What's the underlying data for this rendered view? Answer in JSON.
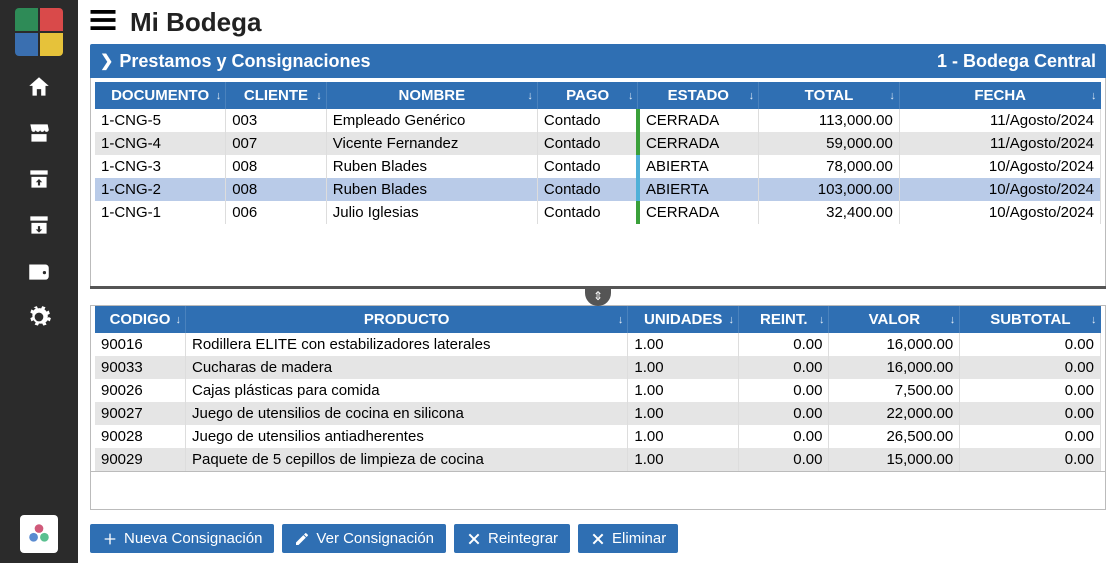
{
  "app": {
    "title": "Mi Bodega"
  },
  "section": {
    "title": "Prestamos y Consignaciones",
    "location": "1 - Bodega Central"
  },
  "colors": {
    "primary": "#2f6fb3",
    "row_alt": "#e5e5e5",
    "row_selected": "#b9cbe8",
    "estado_cerrada": "#3aa03a",
    "estado_abierta": "#4fb0d8",
    "sidebar_bg": "#2b2b2b"
  },
  "logo_colors": [
    "#2e8b57",
    "#d94a4a",
    "#3a6fb0",
    "#e6c23a"
  ],
  "master": {
    "columns": [
      {
        "key": "documento",
        "label": "DOCUMENTO",
        "width": "13%",
        "align": "left"
      },
      {
        "key": "cliente",
        "label": "CLIENTE",
        "width": "10%",
        "align": "left"
      },
      {
        "key": "nombre",
        "label": "NOMBRE",
        "width": "21%",
        "align": "left"
      },
      {
        "key": "pago",
        "label": "PAGO",
        "width": "10%",
        "align": "left"
      },
      {
        "key": "estado",
        "label": "ESTADO",
        "width": "12%",
        "align": "left"
      },
      {
        "key": "total",
        "label": "TOTAL",
        "width": "14%",
        "align": "right"
      },
      {
        "key": "fecha",
        "label": "FECHA",
        "width": "20%",
        "align": "right"
      }
    ],
    "rows": [
      {
        "documento": "1-CNG-5",
        "cliente": "003",
        "nombre": "Empleado Genérico",
        "pago": "Contado",
        "estado": "CERRADA",
        "total": "113,000.00",
        "fecha": "11/Agosto/2024"
      },
      {
        "documento": "1-CNG-4",
        "cliente": "007",
        "nombre": "Vicente Fernandez",
        "pago": "Contado",
        "estado": "CERRADA",
        "total": "59,000.00",
        "fecha": "11/Agosto/2024"
      },
      {
        "documento": "1-CNG-3",
        "cliente": "008",
        "nombre": "Ruben Blades",
        "pago": "Contado",
        "estado": "ABIERTA",
        "total": "78,000.00",
        "fecha": "10/Agosto/2024"
      },
      {
        "documento": "1-CNG-2",
        "cliente": "008",
        "nombre": "Ruben Blades",
        "pago": "Contado",
        "estado": "ABIERTA",
        "total": "103,000.00",
        "fecha": "10/Agosto/2024",
        "selected": true
      },
      {
        "documento": "1-CNG-1",
        "cliente": "006",
        "nombre": "Julio Iglesias",
        "pago": "Contado",
        "estado": "CERRADA",
        "total": "32,400.00",
        "fecha": "10/Agosto/2024"
      }
    ]
  },
  "detail": {
    "columns": [
      {
        "key": "codigo",
        "label": "CODIGO",
        "width": "9%",
        "align": "left"
      },
      {
        "key": "producto",
        "label": "PRODUCTO",
        "width": "44%",
        "align": "left"
      },
      {
        "key": "unidades",
        "label": "UNIDADES",
        "width": "11%",
        "align": "left"
      },
      {
        "key": "reint",
        "label": "REINT.",
        "width": "9%",
        "align": "right"
      },
      {
        "key": "valor",
        "label": "VALOR",
        "width": "13%",
        "align": "right"
      },
      {
        "key": "subtotal",
        "label": "SUBTOTAL",
        "width": "14%",
        "align": "right"
      }
    ],
    "rows": [
      {
        "codigo": "90016",
        "producto": "Rodillera ELITE con estabilizadores laterales",
        "unidades": "1.00",
        "reint": "0.00",
        "valor": "16,000.00",
        "subtotal": "0.00"
      },
      {
        "codigo": "90033",
        "producto": "Cucharas de madera",
        "unidades": "1.00",
        "reint": "0.00",
        "valor": "16,000.00",
        "subtotal": "0.00"
      },
      {
        "codigo": "90026",
        "producto": "Cajas plásticas para comida",
        "unidades": "1.00",
        "reint": "0.00",
        "valor": "7,500.00",
        "subtotal": "0.00"
      },
      {
        "codigo": "90027",
        "producto": "Juego de utensilios de cocina en silicona",
        "unidades": "1.00",
        "reint": "0.00",
        "valor": "22,000.00",
        "subtotal": "0.00"
      },
      {
        "codigo": "90028",
        "producto": "Juego de utensilios antiadherentes",
        "unidades": "1.00",
        "reint": "0.00",
        "valor": "26,500.00",
        "subtotal": "0.00"
      },
      {
        "codigo": "90029",
        "producto": "Paquete de 5 cepillos de limpieza de cocina",
        "unidades": "1.00",
        "reint": "0.00",
        "valor": "15,000.00",
        "subtotal": "0.00"
      }
    ]
  },
  "actions": {
    "nueva": "Nueva Consignación",
    "ver": "Ver Consignación",
    "reintegrar": "Reintegrar",
    "eliminar": "Eliminar"
  }
}
